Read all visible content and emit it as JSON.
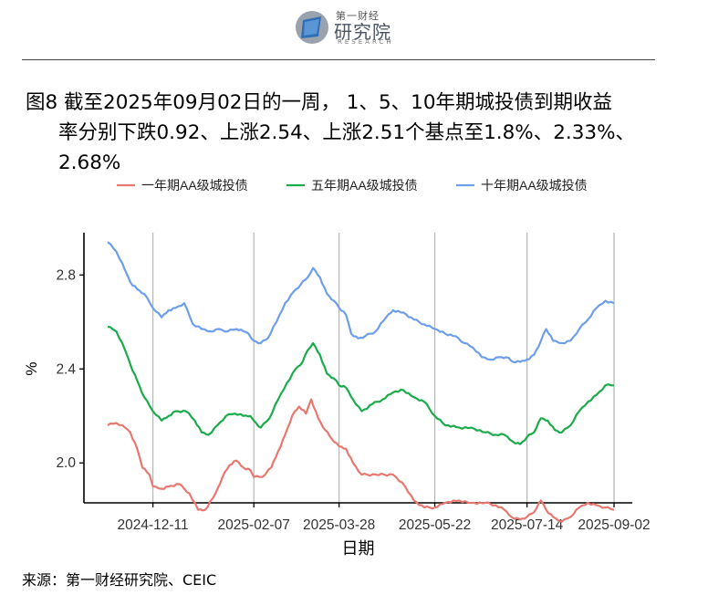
{
  "header": {
    "logo_small": "第一财经",
    "logo_main": "研究院",
    "logo_en": "RESEARCH"
  },
  "title": {
    "line1": "图8  截至2025年09月02日的一周， 1、5、10年期城投债到期收益",
    "line2": "率分别下跌0.92、上涨2.54、上涨2.51个基点至1.8%、2.33%、",
    "line3": "2.68%"
  },
  "source": "来源：第一财经研究院、CEIC",
  "chart_data": {
    "type": "line",
    "xlabel": "日期",
    "ylabel": "%",
    "x_start": "2024-11-15",
    "x_end": "2025-09-02",
    "xticks": [
      "2024-12-11",
      "2025-02-07",
      "2025-03-28",
      "2025-05-22",
      "2025-07-14",
      "2025-09-02"
    ],
    "yticks": [
      2.0,
      2.4,
      2.8
    ],
    "ylim": [
      1.83,
      2.98
    ],
    "grid": "vertical",
    "legend_position": "top",
    "series": [
      {
        "name": "一年期AA级城投债",
        "color": "#e8776f",
        "points": [
          [
            "2024-11-15",
            2.16
          ],
          [
            "2024-11-20",
            2.17
          ],
          [
            "2024-11-25",
            2.15
          ],
          [
            "2024-11-28",
            2.13
          ],
          [
            "2024-12-02",
            2.06
          ],
          [
            "2024-12-05",
            1.98
          ],
          [
            "2024-12-09",
            1.95
          ],
          [
            "2024-12-11",
            1.9
          ],
          [
            "2024-12-16",
            1.89
          ],
          [
            "2024-12-20",
            1.9
          ],
          [
            "2024-12-26",
            1.91
          ],
          [
            "2025-01-01",
            1.87
          ],
          [
            "2025-01-06",
            1.8
          ],
          [
            "2025-01-10",
            1.8
          ],
          [
            "2025-01-16",
            1.87
          ],
          [
            "2025-01-20",
            1.94
          ],
          [
            "2025-01-24",
            1.99
          ],
          [
            "2025-01-28",
            2.01
          ],
          [
            "2025-02-01",
            1.98
          ],
          [
            "2025-02-05",
            1.97
          ],
          [
            "2025-02-07",
            1.94
          ],
          [
            "2025-02-12",
            1.94
          ],
          [
            "2025-02-17",
            1.98
          ],
          [
            "2025-02-21",
            2.05
          ],
          [
            "2025-02-25",
            2.12
          ],
          [
            "2025-03-01",
            2.2
          ],
          [
            "2025-03-05",
            2.24
          ],
          [
            "2025-03-09",
            2.21
          ],
          [
            "2025-03-12",
            2.27
          ],
          [
            "2025-03-16",
            2.19
          ],
          [
            "2025-03-20",
            2.14
          ],
          [
            "2025-03-24",
            2.1
          ],
          [
            "2025-03-28",
            2.07
          ],
          [
            "2025-04-01",
            2.06
          ],
          [
            "2025-04-05",
            2.0
          ],
          [
            "2025-04-10",
            1.95
          ],
          [
            "2025-04-18",
            1.95
          ],
          [
            "2025-04-28",
            1.95
          ],
          [
            "2025-05-05",
            1.9
          ],
          [
            "2025-05-10",
            1.84
          ],
          [
            "2025-05-16",
            1.81
          ],
          [
            "2025-05-22",
            1.81
          ],
          [
            "2025-05-28",
            1.83
          ],
          [
            "2025-06-05",
            1.84
          ],
          [
            "2025-06-12",
            1.83
          ],
          [
            "2025-06-20",
            1.83
          ],
          [
            "2025-06-26",
            1.82
          ],
          [
            "2025-07-01",
            1.8
          ],
          [
            "2025-07-05",
            1.77
          ],
          [
            "2025-07-10",
            1.76
          ],
          [
            "2025-07-14",
            1.77
          ],
          [
            "2025-07-18",
            1.79
          ],
          [
            "2025-07-22",
            1.84
          ],
          [
            "2025-07-25",
            1.8
          ],
          [
            "2025-07-29",
            1.77
          ],
          [
            "2025-08-03",
            1.75
          ],
          [
            "2025-08-08",
            1.77
          ],
          [
            "2025-08-13",
            1.81
          ],
          [
            "2025-08-18",
            1.83
          ],
          [
            "2025-08-23",
            1.82
          ],
          [
            "2025-08-28",
            1.81
          ],
          [
            "2025-09-02",
            1.8
          ]
        ]
      },
      {
        "name": "五年期AA级城投债",
        "color": "#1aac4a",
        "points": [
          [
            "2024-11-15",
            2.58
          ],
          [
            "2024-11-20",
            2.56
          ],
          [
            "2024-11-25",
            2.48
          ],
          [
            "2024-11-28",
            2.42
          ],
          [
            "2024-12-02",
            2.35
          ],
          [
            "2024-12-06",
            2.28
          ],
          [
            "2024-12-11",
            2.22
          ],
          [
            "2024-12-16",
            2.18
          ],
          [
            "2024-12-20",
            2.2
          ],
          [
            "2024-12-24",
            2.22
          ],
          [
            "2024-12-30",
            2.22
          ],
          [
            "2025-01-04",
            2.18
          ],
          [
            "2025-01-08",
            2.13
          ],
          [
            "2025-01-12",
            2.12
          ],
          [
            "2025-01-17",
            2.16
          ],
          [
            "2025-01-22",
            2.2
          ],
          [
            "2025-01-27",
            2.21
          ],
          [
            "2025-02-01",
            2.2
          ],
          [
            "2025-02-05",
            2.2
          ],
          [
            "2025-02-07",
            2.18
          ],
          [
            "2025-02-11",
            2.15
          ],
          [
            "2025-02-16",
            2.19
          ],
          [
            "2025-02-21",
            2.27
          ],
          [
            "2025-02-26",
            2.34
          ],
          [
            "2025-03-03",
            2.4
          ],
          [
            "2025-03-07",
            2.43
          ],
          [
            "2025-03-10",
            2.48
          ],
          [
            "2025-03-13",
            2.51
          ],
          [
            "2025-03-17",
            2.46
          ],
          [
            "2025-03-21",
            2.38
          ],
          [
            "2025-03-25",
            2.36
          ],
          [
            "2025-03-28",
            2.33
          ],
          [
            "2025-04-01",
            2.32
          ],
          [
            "2025-04-05",
            2.27
          ],
          [
            "2025-04-10",
            2.22
          ],
          [
            "2025-04-16",
            2.25
          ],
          [
            "2025-04-22",
            2.27
          ],
          [
            "2025-04-28",
            2.3
          ],
          [
            "2025-05-04",
            2.31
          ],
          [
            "2025-05-10",
            2.28
          ],
          [
            "2025-05-16",
            2.26
          ],
          [
            "2025-05-22",
            2.2
          ],
          [
            "2025-05-28",
            2.16
          ],
          [
            "2025-06-05",
            2.15
          ],
          [
            "2025-06-12",
            2.15
          ],
          [
            "2025-06-20",
            2.13
          ],
          [
            "2025-06-26",
            2.12
          ],
          [
            "2025-07-01",
            2.12
          ],
          [
            "2025-07-06",
            2.09
          ],
          [
            "2025-07-10",
            2.08
          ],
          [
            "2025-07-14",
            2.11
          ],
          [
            "2025-07-18",
            2.13
          ],
          [
            "2025-07-22",
            2.19
          ],
          [
            "2025-07-26",
            2.18
          ],
          [
            "2025-07-30",
            2.14
          ],
          [
            "2025-08-03",
            2.13
          ],
          [
            "2025-08-08",
            2.16
          ],
          [
            "2025-08-13",
            2.22
          ],
          [
            "2025-08-18",
            2.26
          ],
          [
            "2025-08-23",
            2.29
          ],
          [
            "2025-08-28",
            2.33
          ],
          [
            "2025-09-02",
            2.33
          ]
        ]
      },
      {
        "name": "十年期AA级城投债",
        "color": "#6d9eeb",
        "points": [
          [
            "2024-11-15",
            2.94
          ],
          [
            "2024-11-20",
            2.9
          ],
          [
            "2024-11-25",
            2.82
          ],
          [
            "2024-11-28",
            2.77
          ],
          [
            "2024-12-02",
            2.74
          ],
          [
            "2024-12-06",
            2.72
          ],
          [
            "2024-12-11",
            2.66
          ],
          [
            "2024-12-16",
            2.62
          ],
          [
            "2024-12-20",
            2.65
          ],
          [
            "2024-12-24",
            2.66
          ],
          [
            "2024-12-29",
            2.68
          ],
          [
            "2025-01-03",
            2.59
          ],
          [
            "2025-01-08",
            2.57
          ],
          [
            "2025-01-13",
            2.56
          ],
          [
            "2025-01-18",
            2.57
          ],
          [
            "2025-01-23",
            2.56
          ],
          [
            "2025-01-28",
            2.57
          ],
          [
            "2025-02-01",
            2.56
          ],
          [
            "2025-02-04",
            2.55
          ],
          [
            "2025-02-07",
            2.52
          ],
          [
            "2025-02-11",
            2.51
          ],
          [
            "2025-02-15",
            2.53
          ],
          [
            "2025-02-20",
            2.6
          ],
          [
            "2025-02-25",
            2.68
          ],
          [
            "2025-03-02",
            2.73
          ],
          [
            "2025-03-06",
            2.76
          ],
          [
            "2025-03-10",
            2.79
          ],
          [
            "2025-03-13",
            2.83
          ],
          [
            "2025-03-17",
            2.79
          ],
          [
            "2025-03-21",
            2.72
          ],
          [
            "2025-03-25",
            2.69
          ],
          [
            "2025-03-28",
            2.66
          ],
          [
            "2025-04-01",
            2.63
          ],
          [
            "2025-04-04",
            2.55
          ],
          [
            "2025-04-08",
            2.53
          ],
          [
            "2025-04-12",
            2.54
          ],
          [
            "2025-04-18",
            2.56
          ],
          [
            "2025-04-24",
            2.62
          ],
          [
            "2025-04-28",
            2.65
          ],
          [
            "2025-05-04",
            2.64
          ],
          [
            "2025-05-10",
            2.61
          ],
          [
            "2025-05-16",
            2.59
          ],
          [
            "2025-05-22",
            2.57
          ],
          [
            "2025-05-28",
            2.55
          ],
          [
            "2025-06-03",
            2.54
          ],
          [
            "2025-06-08",
            2.51
          ],
          [
            "2025-06-13",
            2.49
          ],
          [
            "2025-06-18",
            2.45
          ],
          [
            "2025-06-23",
            2.44
          ],
          [
            "2025-06-28",
            2.45
          ],
          [
            "2025-07-02",
            2.45
          ],
          [
            "2025-07-06",
            2.43
          ],
          [
            "2025-07-10",
            2.43
          ],
          [
            "2025-07-14",
            2.44
          ],
          [
            "2025-07-18",
            2.46
          ],
          [
            "2025-07-22",
            2.52
          ],
          [
            "2025-07-25",
            2.57
          ],
          [
            "2025-07-29",
            2.52
          ],
          [
            "2025-08-03",
            2.51
          ],
          [
            "2025-08-08",
            2.52
          ],
          [
            "2025-08-13",
            2.57
          ],
          [
            "2025-08-18",
            2.61
          ],
          [
            "2025-08-23",
            2.66
          ],
          [
            "2025-08-28",
            2.69
          ],
          [
            "2025-09-02",
            2.68
          ]
        ]
      }
    ]
  }
}
